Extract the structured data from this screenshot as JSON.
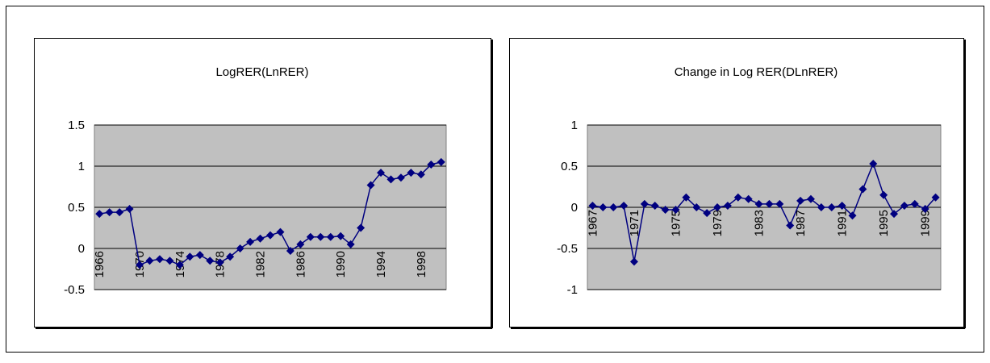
{
  "chart_data": [
    {
      "type": "line",
      "title": "LogRER(LnRER)",
      "color": "#000080",
      "grid": true,
      "categories": [
        "1966",
        null,
        null,
        null,
        "1970",
        null,
        null,
        null,
        "1974",
        null,
        null,
        null,
        "1978",
        null,
        null,
        null,
        "1982",
        null,
        null,
        null,
        "1986",
        null,
        null,
        null,
        "1990",
        null,
        null,
        null,
        "1994",
        null,
        null,
        null,
        "1998",
        null,
        null
      ],
      "values": [
        0.42,
        0.44,
        0.44,
        0.48,
        -0.2,
        -0.15,
        -0.13,
        -0.15,
        -0.2,
        -0.1,
        -0.08,
        -0.15,
        -0.17,
        -0.1,
        0.0,
        0.08,
        0.12,
        0.16,
        0.2,
        -0.03,
        0.05,
        0.14,
        0.14,
        0.14,
        0.15,
        0.05,
        0.25,
        0.77,
        0.92,
        0.84,
        0.86,
        0.92,
        0.9,
        1.02,
        1.05
      ],
      "ylim": [
        -0.5,
        1.5
      ],
      "yticks": [
        -0.5,
        0,
        0.5,
        1,
        1.5
      ]
    },
    {
      "type": "line",
      "title": "Change in Log RER(DLnRER)",
      "color": "#000080",
      "grid": true,
      "categories": [
        "1967",
        null,
        null,
        null,
        "1971",
        null,
        null,
        null,
        "1975",
        null,
        null,
        null,
        "1979",
        null,
        null,
        null,
        "1983",
        null,
        null,
        null,
        "1987",
        null,
        null,
        null,
        "1991",
        null,
        null,
        null,
        "1995",
        null,
        null,
        null,
        "1999",
        null
      ],
      "values": [
        0.02,
        0.0,
        0.0,
        0.02,
        -0.66,
        0.04,
        0.02,
        -0.03,
        -0.03,
        0.12,
        0.0,
        -0.07,
        0.0,
        0.02,
        0.12,
        0.1,
        0.04,
        0.04,
        0.04,
        -0.22,
        0.08,
        0.1,
        0.0,
        0.0,
        0.02,
        -0.1,
        0.22,
        0.53,
        0.15,
        -0.08,
        0.02,
        0.04,
        -0.02,
        0.12
      ],
      "ylim": [
        -1,
        1
      ],
      "yticks": [
        -1,
        -0.5,
        0,
        0.5,
        1
      ]
    }
  ]
}
